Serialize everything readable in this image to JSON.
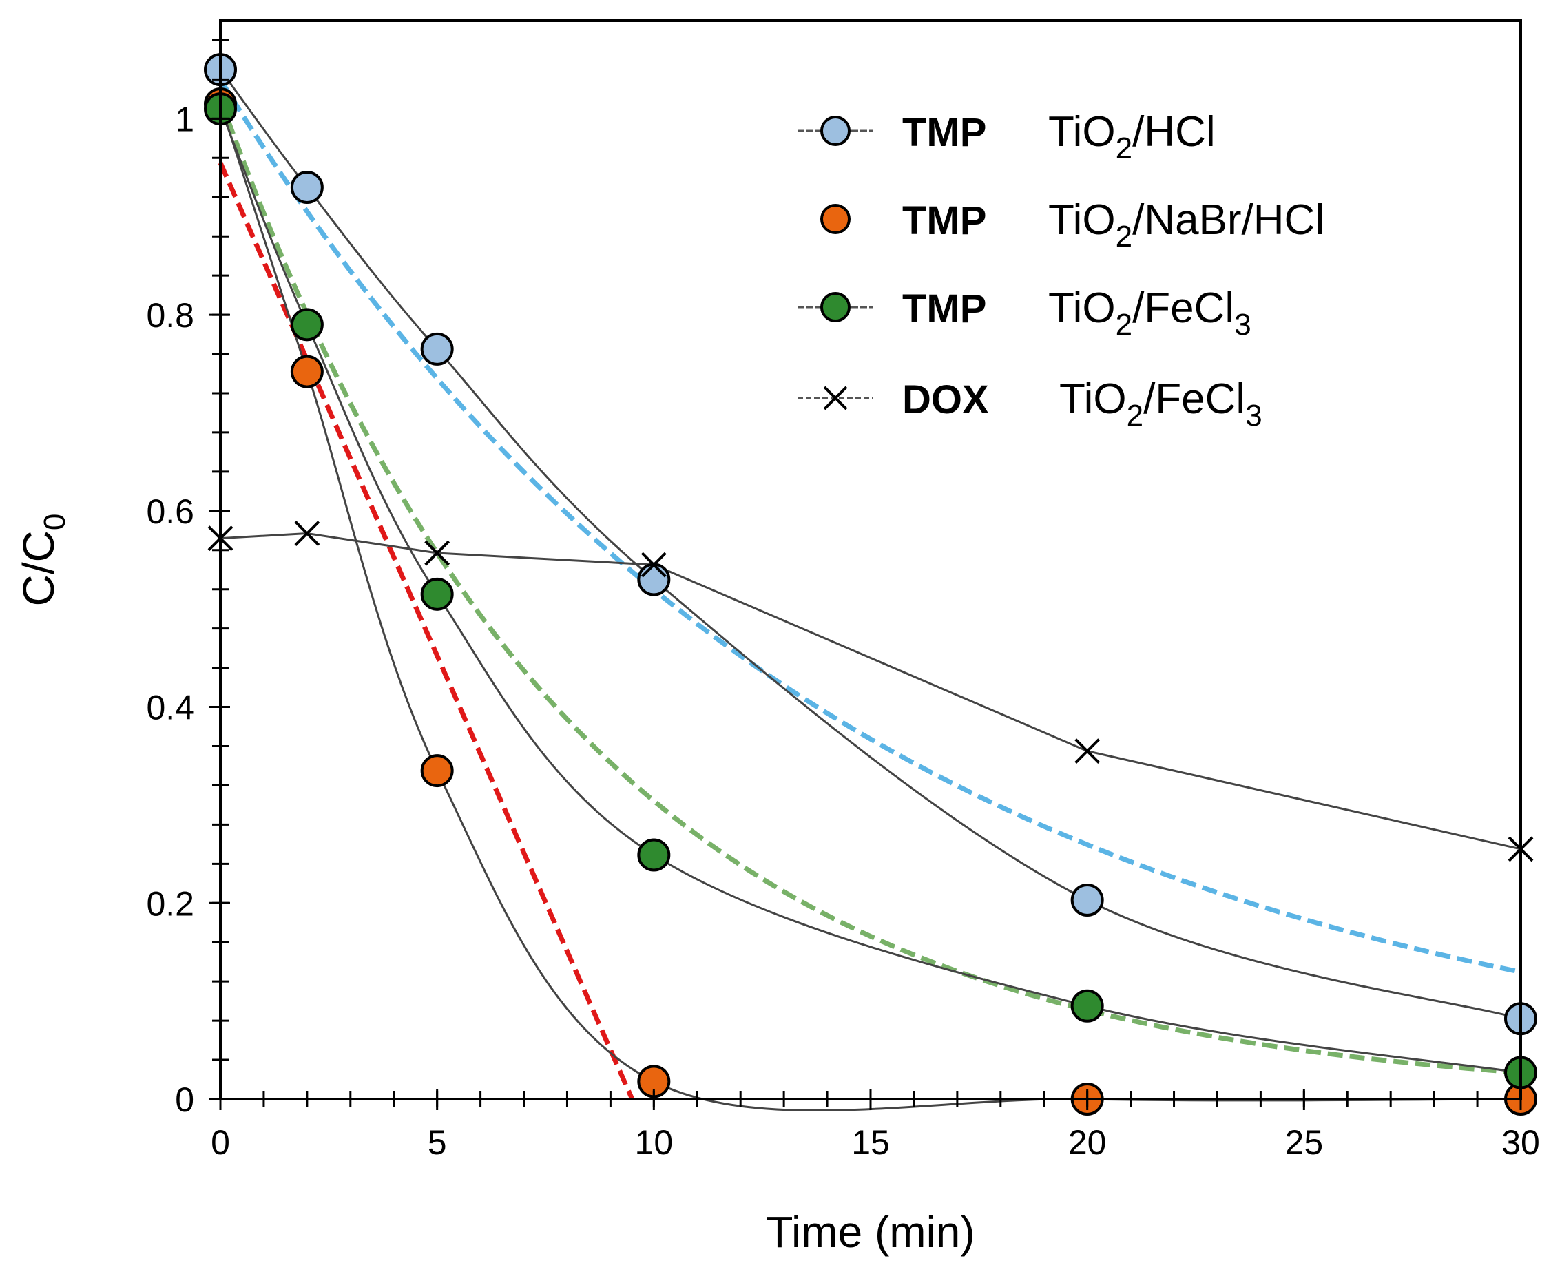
{
  "chart_data": {
    "type": "line",
    "xlabel": "Time (min)",
    "ylabel_main": "C/C",
    "ylabel_sub": "0",
    "xlim": [
      0,
      30
    ],
    "ylim": [
      0,
      1.1
    ],
    "x_ticks": [
      0,
      5,
      10,
      15,
      20,
      25,
      30
    ],
    "x_tick_labels": [
      "0",
      "5",
      "10",
      "15",
      "20",
      "25",
      "30"
    ],
    "y_ticks": [
      0,
      0.2,
      0.4,
      0.6,
      0.8,
      1.0
    ],
    "y_tick_labels": [
      "0",
      "0.2",
      "0.4",
      "0.6",
      "0.8",
      "1"
    ],
    "grid": false,
    "legend_position": "top-right",
    "series": [
      {
        "name": "TMP TiO2/HCl",
        "label_bold": "TMP",
        "label_parts": [
          "TiO",
          "2",
          "/HCl"
        ],
        "marker": "circle",
        "color": "#9dbfe0",
        "x": [
          0,
          2,
          5,
          10,
          20,
          30
        ],
        "y": [
          1.05,
          0.93,
          0.765,
          0.53,
          0.203,
          0.082
        ]
      },
      {
        "name": "TMP TiO2/NaBr/HCl",
        "label_bold": "TMP",
        "label_parts": [
          "TiO",
          "2",
          "/NaBr/HCl"
        ],
        "marker": "circle",
        "color": "#e9650f",
        "x": [
          0,
          2,
          5,
          10,
          20,
          30
        ],
        "y": [
          1.015,
          0.742,
          0.335,
          0.018,
          0.0,
          0.0
        ]
      },
      {
        "name": "TMP TiO2/FeCl3",
        "label_bold": "TMP",
        "label_parts": [
          "TiO",
          "2",
          "/FeCl",
          "3"
        ],
        "marker": "circle",
        "color": "#2f8a2f",
        "x": [
          0,
          2,
          5,
          10,
          20,
          30
        ],
        "y": [
          1.01,
          0.79,
          0.515,
          0.249,
          0.095,
          0.027
        ]
      },
      {
        "name": "DOX TiO2/FeCl3",
        "label_bold": "DOX",
        "label_parts": [
          "TiO",
          "2",
          "/FeCl",
          "3"
        ],
        "marker": "x",
        "color": "#000000",
        "x": [
          0,
          2,
          5,
          10,
          20,
          30
        ],
        "y": [
          0.572,
          0.577,
          0.557,
          0.545,
          0.355,
          0.255
        ]
      }
    ],
    "fits": [
      {
        "name": "TiO2/HCl fit",
        "color": "#5bb4e5",
        "type": "exp",
        "a": 1.04,
        "k": 0.0694
      },
      {
        "name": "TiO2/FeCl3 fit",
        "color": "#78b168",
        "type": "exp",
        "a": 1.02,
        "k": 0.121
      },
      {
        "name": "TiO2/NaBr/HCl fit",
        "color": "#e01818",
        "type": "linear",
        "x": [
          0,
          9.5
        ],
        "y": [
          0.955,
          0.0
        ]
      }
    ]
  }
}
